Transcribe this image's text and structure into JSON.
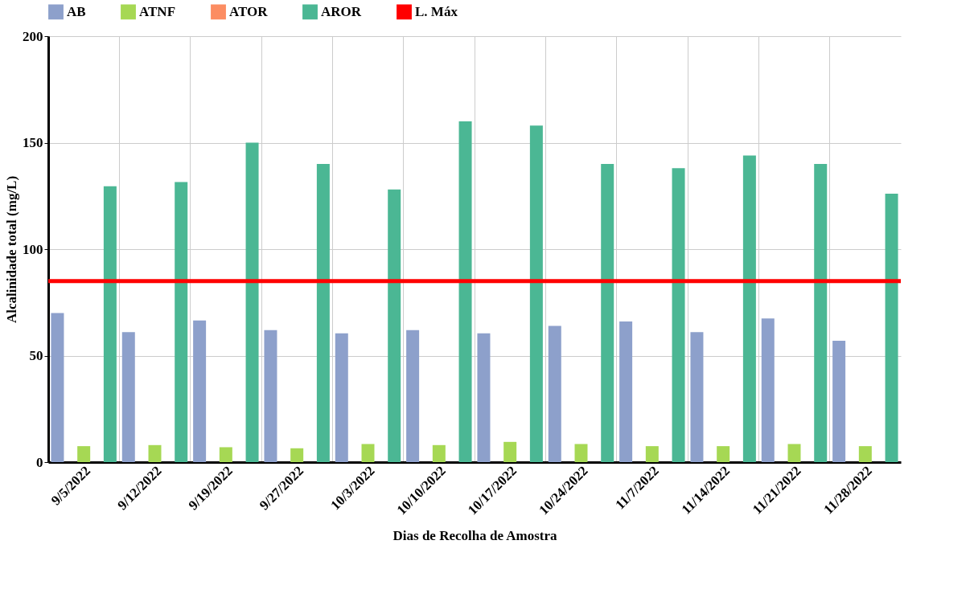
{
  "chart_data": {
    "type": "bar",
    "xlabel": "Dias de Recolha de Amostra",
    "ylabel": "Alcalinidade  total (mg/L)",
    "categories": [
      "9/5/2022",
      "9/12/2022",
      "9/19/2022",
      "9/27/2022",
      "10/3/2022",
      "10/10/2022",
      "10/17/2022",
      "10/24/2022",
      "11/7/2022",
      "11/14/2022",
      "11/21/2022",
      "11/28/2022"
    ],
    "series": [
      {
        "name": "AB",
        "color": "#8da0cb",
        "values": [
          70,
          61,
          66.5,
          62,
          60.5,
          62,
          60.5,
          64,
          66,
          61,
          67.5,
          57
        ]
      },
      {
        "name": "ATNF",
        "color": "#a6d854",
        "values": [
          7.5,
          8,
          7,
          6.5,
          8.5,
          8,
          9.5,
          8.5,
          7.5,
          7.5,
          8.5,
          7.5
        ]
      },
      {
        "name": "ATOR",
        "color": "#fc8d62",
        "values": [
          null,
          null,
          null,
          null,
          null,
          null,
          null,
          null,
          null,
          null,
          null,
          null
        ]
      },
      {
        "name": "AROR",
        "color": "#4bb794",
        "values": [
          129.5,
          131.5,
          150,
          140,
          128,
          160,
          158,
          140,
          138,
          144,
          140,
          126
        ]
      }
    ],
    "ref_lines": [
      {
        "axis": "y",
        "value": 85,
        "label": "L. Máx",
        "color": "#ff0000"
      }
    ],
    "ylim": [
      0,
      200
    ],
    "yticks": [
      0,
      50,
      100,
      150,
      200
    ],
    "grid": true,
    "legend": "top"
  }
}
